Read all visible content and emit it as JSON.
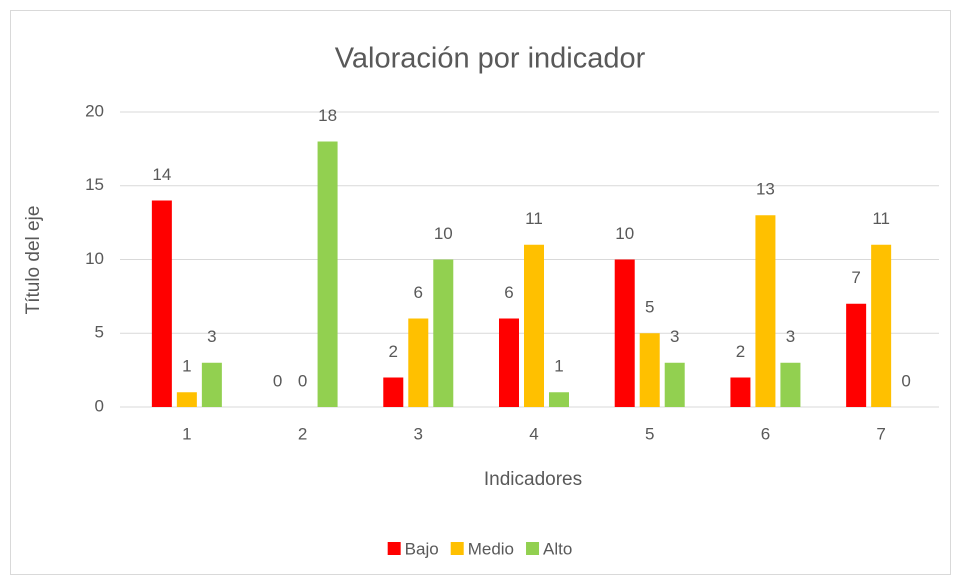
{
  "chart_data": {
    "type": "bar",
    "title": "Valoración por indicador",
    "x_label": "Indicadores",
    "y_label": "Título del eje",
    "categories": [
      "1",
      "2",
      "3",
      "4",
      "5",
      "6",
      "7"
    ],
    "series": [
      {
        "name": "Bajo",
        "color": "#ff0000",
        "values": [
          14,
          0,
          2,
          6,
          10,
          2,
          7
        ]
      },
      {
        "name": "Medio",
        "color": "#ffc000",
        "values": [
          1,
          0,
          6,
          11,
          5,
          13,
          11
        ]
      },
      {
        "name": "Alto",
        "color": "#92d050",
        "values": [
          3,
          18,
          10,
          1,
          3,
          3,
          0
        ]
      }
    ],
    "ylim": [
      0,
      20
    ],
    "yticks": [
      0,
      5,
      10,
      15,
      20
    ],
    "grid": true,
    "legend": "bottom"
  }
}
